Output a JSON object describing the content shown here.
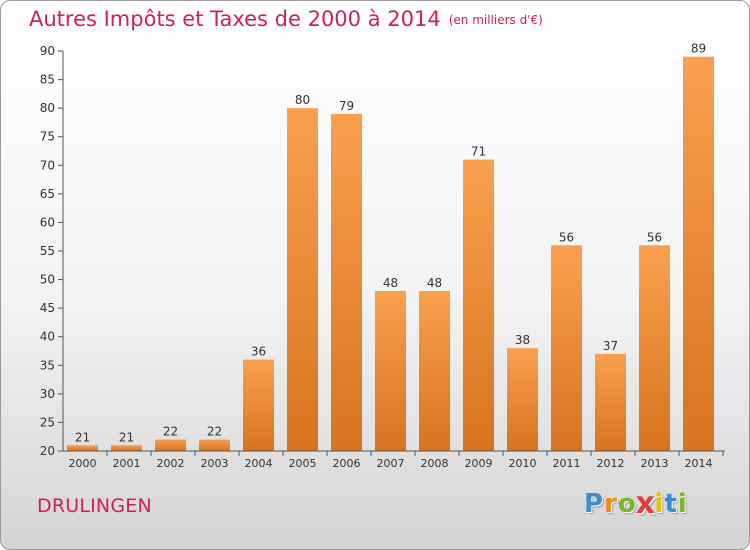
{
  "header": {
    "title": "Autres Impôts et Taxes de 2000 à 2014",
    "subtitle": "(en milliers d'€)"
  },
  "footer": {
    "commune": "DRULINGEN",
    "logo_letters": [
      "P",
      "r",
      "o",
      "x",
      "i",
      "t",
      "i"
    ],
    "logo_colors": [
      "#3a8fd4",
      "#f08a1c",
      "#76b82a",
      "#e23b3b",
      "#f5b800",
      "#3a8fd4",
      "#76b82a"
    ]
  },
  "colors": {
    "accent": "#cf1f60",
    "bar_light": "#f9a04e",
    "bar_dark": "#d8731f",
    "axis": "#555555"
  },
  "chart_data": {
    "type": "bar",
    "title": "Autres Impôts et Taxes de 2000 à 2014",
    "subtitle": "(en milliers d'€)",
    "categories": [
      "2000",
      "2001",
      "2002",
      "2003",
      "2004",
      "2005",
      "2006",
      "2007",
      "2008",
      "2009",
      "2010",
      "2011",
      "2012",
      "2013",
      "2014"
    ],
    "values": [
      21,
      21,
      22,
      22,
      36,
      80,
      79,
      48,
      48,
      71,
      38,
      56,
      37,
      56,
      89
    ],
    "ylim": [
      20,
      90
    ],
    "yticks": [
      20,
      25,
      30,
      35,
      40,
      45,
      50,
      55,
      60,
      65,
      70,
      75,
      80,
      85,
      90
    ],
    "grid": false,
    "data_labels": true
  }
}
